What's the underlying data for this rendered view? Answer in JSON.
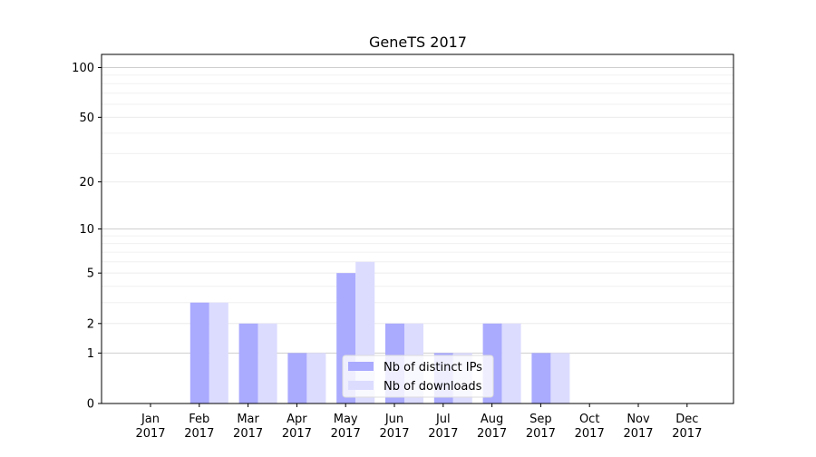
{
  "chart_data": {
    "type": "bar",
    "title": "GeneTS 2017",
    "categories": [
      [
        "Jan",
        "2017"
      ],
      [
        "Feb",
        "2017"
      ],
      [
        "Mar",
        "2017"
      ],
      [
        "Apr",
        "2017"
      ],
      [
        "May",
        "2017"
      ],
      [
        "Jun",
        "2017"
      ],
      [
        "Jul",
        "2017"
      ],
      [
        "Aug",
        "2017"
      ],
      [
        "Sep",
        "2017"
      ],
      [
        "Oct",
        "2017"
      ],
      [
        "Nov",
        "2017"
      ],
      [
        "Dec",
        "2017"
      ]
    ],
    "series": [
      {
        "name": "Nb of distinct IPs",
        "color": "#aaaaff",
        "values": [
          0,
          3,
          2,
          1,
          5,
          2,
          1,
          2,
          1,
          0,
          0,
          0
        ]
      },
      {
        "name": "Nb of downloads",
        "color": "#dcdcff",
        "values": [
          0,
          3,
          2,
          1,
          6,
          2,
          1,
          2,
          1,
          0,
          0,
          0
        ]
      }
    ],
    "y_scale": "log(1+y)",
    "ylim": [
      0,
      120
    ],
    "y_ticks": [
      0,
      1,
      2,
      5,
      10,
      20,
      50,
      100
    ],
    "grid": "horizontal",
    "legend_position": "bottom-center"
  }
}
